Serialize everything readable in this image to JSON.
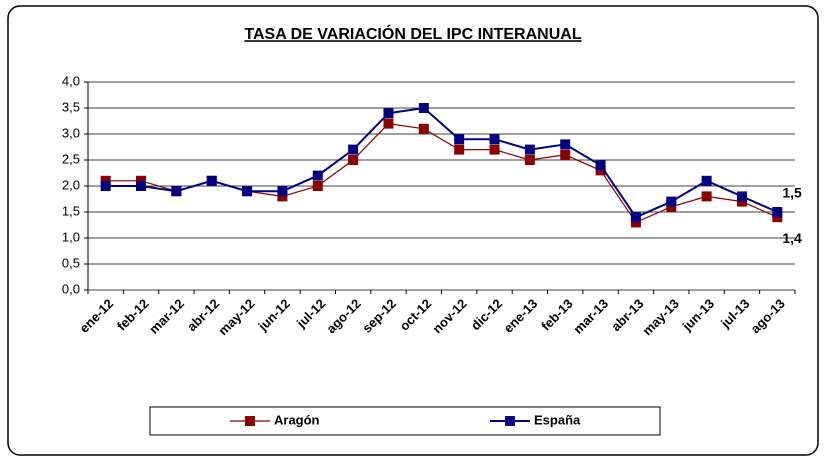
{
  "chart_data": {
    "type": "line",
    "title": "TASA DE VARIACIÓN DEL IPC INTERANUAL",
    "categories": [
      "ene-12",
      "feb-12",
      "mar-12",
      "abr-12",
      "may-12",
      "jun-12",
      "jul-12",
      "ago-12",
      "sep-12",
      "oct-12",
      "nov-12",
      "dic-12",
      "ene-13",
      "feb-13",
      "mar-13",
      "abr-13",
      "may-13",
      "jun-13",
      "jul-13",
      "ago-13"
    ],
    "series": [
      {
        "name": "Aragón",
        "color": "#8b0000",
        "values": [
          2.1,
          2.1,
          1.9,
          2.1,
          1.9,
          1.8,
          2.0,
          2.5,
          3.2,
          3.1,
          2.7,
          2.7,
          2.5,
          2.6,
          2.3,
          1.3,
          1.6,
          1.8,
          1.7,
          1.4
        ],
        "value_labels": [
          null,
          null,
          null,
          null,
          null,
          null,
          null,
          null,
          null,
          null,
          null,
          null,
          null,
          null,
          null,
          null,
          null,
          null,
          null,
          "1,4"
        ]
      },
      {
        "name": "España",
        "color": "#000080",
        "values": [
          2.0,
          2.0,
          1.9,
          2.1,
          1.9,
          1.9,
          2.2,
          2.7,
          3.4,
          3.5,
          2.9,
          2.9,
          2.7,
          2.8,
          2.4,
          1.4,
          1.7,
          2.1,
          1.8,
          1.5
        ],
        "value_labels": [
          null,
          null,
          null,
          null,
          null,
          null,
          null,
          null,
          null,
          null,
          null,
          null,
          null,
          null,
          null,
          null,
          null,
          null,
          null,
          "1,5"
        ]
      }
    ],
    "ylim": [
      0,
      4
    ],
    "yticks": [
      {
        "value": 0,
        "label": "0,0"
      },
      {
        "value": 0.5,
        "label": "0,5"
      },
      {
        "value": 1,
        "label": "1,0"
      },
      {
        "value": 1.5,
        "label": "1,5"
      },
      {
        "value": 2,
        "label": "2,0"
      },
      {
        "value": 2.5,
        "label": "2,5"
      },
      {
        "value": 3,
        "label": "3,0"
      },
      {
        "value": 3.5,
        "label": "3,5"
      },
      {
        "value": 4,
        "label": "4,0"
      }
    ],
    "grid": true,
    "legend": "bottom"
  }
}
